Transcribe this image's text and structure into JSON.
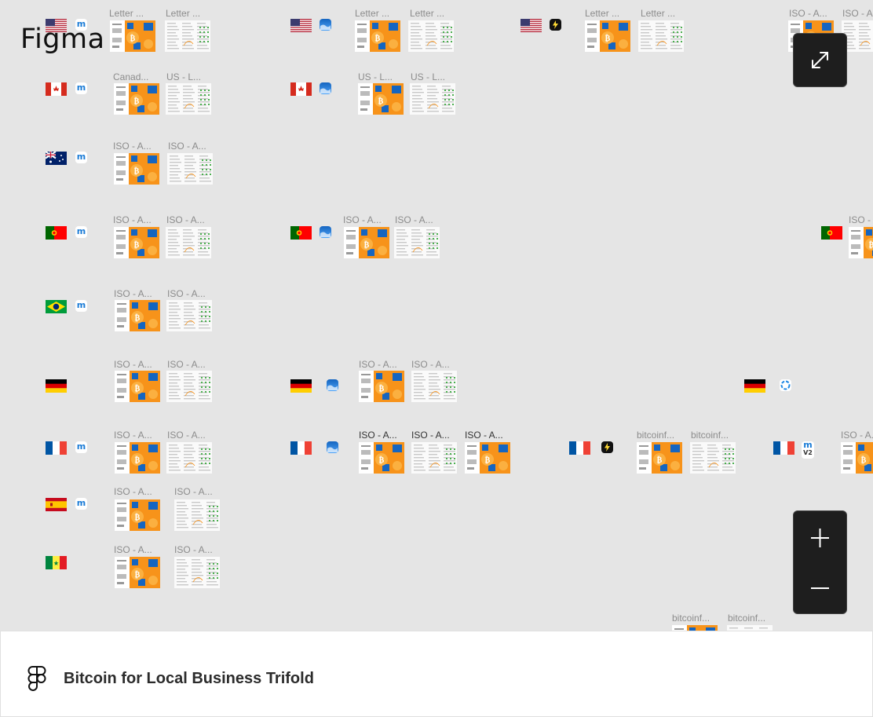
{
  "app": {
    "name": "Figma"
  },
  "file": {
    "title": "Bitcoin for Local Business Trifold"
  },
  "controls": {
    "fullscreen": "expand-icon",
    "zoom_in": "plus-icon",
    "zoom_out": "minus-icon"
  },
  "colors": {
    "bitcoin_orange": "#f7931a",
    "toolbar_dark": "#1e1e1e",
    "canvas": "#e5e5e5",
    "accent_blue": "#1565c0"
  },
  "rows": [
    {
      "country": "US",
      "flag": "us-flag-icon",
      "groups": [
        {
          "app": "muun-wallet-icon",
          "labels": [
            "Letter ...",
            "Letter ..."
          ]
        },
        {
          "app": "blue-wallet-icon",
          "labels": [
            "Letter ...",
            "Letter ..."
          ]
        },
        {
          "app": "lightning-wallet-icon",
          "labels": [
            "Letter ...",
            "Letter ..."
          ]
        },
        {
          "app": "",
          "labels": [
            "ISO - A...",
            "ISO - A..."
          ]
        }
      ]
    },
    {
      "country": "Canada",
      "flag": "canada-flag-icon",
      "groups": [
        {
          "app": "muun-wallet-icon",
          "labels": [
            "Canad...",
            "US - L..."
          ]
        },
        {
          "app": "blue-wallet-icon",
          "labels": [
            "US - L...",
            "US - L..."
          ]
        }
      ]
    },
    {
      "country": "Australia",
      "flag": "australia-flag-icon",
      "groups": [
        {
          "app": "muun-wallet-icon",
          "labels": [
            "ISO - A...",
            "ISO - A..."
          ]
        }
      ]
    },
    {
      "country": "Portugal",
      "flag": "portugal-flag-icon",
      "groups": [
        {
          "app": "muun-wallet-icon",
          "labels": [
            "ISO - A...",
            "ISO - A..."
          ]
        },
        {
          "app": "blue-wallet-icon",
          "labels": [
            "ISO - A...",
            "ISO - A..."
          ]
        },
        {
          "app": "",
          "labels": [
            "ISO -"
          ]
        }
      ]
    },
    {
      "country": "Brazil",
      "flag": "brazil-flag-icon",
      "groups": [
        {
          "app": "muun-wallet-icon",
          "labels": [
            "ISO - A...",
            "ISO - A..."
          ]
        }
      ]
    },
    {
      "country": "Germany",
      "flag": "germany-flag-icon",
      "groups": [
        {
          "app": "",
          "labels": [
            "ISO - A...",
            "ISO - A..."
          ]
        },
        {
          "app": "blue-wallet-icon",
          "labels": [
            "ISO - A...",
            "ISO - A..."
          ]
        },
        {
          "app": "zeus-wallet-icon",
          "labels": []
        }
      ]
    },
    {
      "country": "France",
      "flag": "france-flag-icon",
      "groups": [
        {
          "app": "muun-wallet-icon",
          "labels": [
            "ISO - A...",
            "ISO - A..."
          ]
        },
        {
          "app": "blue-wallet-icon",
          "labels": [
            "ISO - A...",
            "ISO - A...",
            "ISO - A..."
          ]
        },
        {
          "app": "lightning-wallet-icon",
          "labels": [
            "bitcoinf...",
            "bitcoinf..."
          ]
        },
        {
          "app": "muun-v2-wallet-icon",
          "app_text": "V2",
          "labels": [
            "ISO - A..."
          ]
        }
      ]
    },
    {
      "country": "Spain",
      "flag": "spain-flag-icon",
      "groups": [
        {
          "app": "muun-wallet-icon",
          "labels": [
            "ISO - A...",
            "ISO - A..."
          ]
        }
      ]
    },
    {
      "country": "Senegal",
      "flag": "senegal-flag-icon",
      "groups": [
        {
          "app": "",
          "labels": [
            "ISO - A...",
            "ISO - A..."
          ]
        }
      ]
    },
    {
      "country": "",
      "flag": "",
      "groups": [
        {
          "app": "",
          "labels": [
            "bitcoinf...",
            "bitcoinf..."
          ]
        }
      ]
    }
  ]
}
